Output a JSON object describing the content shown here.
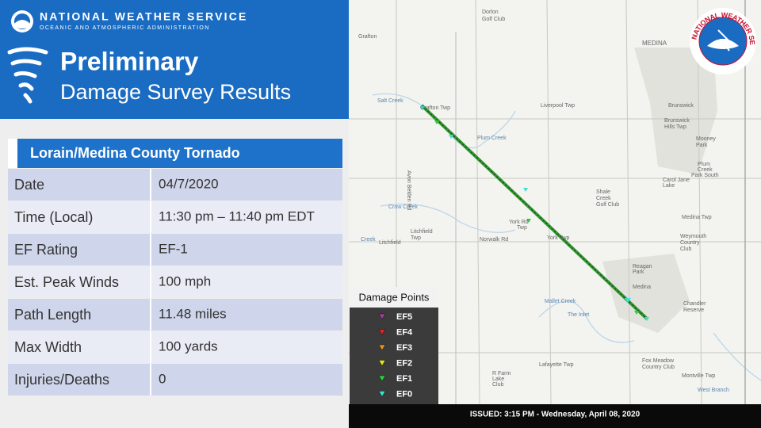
{
  "header": {
    "agency": "NATIONAL WEATHER SERVICE",
    "subagency": "OCEANIC AND ATMOSPHERIC ADMINISTRATION",
    "title": "Preliminary",
    "subtitle": "Damage Survey Results"
  },
  "table": {
    "title": "Lorain/Medina  County Tornado",
    "rows": [
      [
        "Date",
        "04/7/2020"
      ],
      [
        "Time (Local)",
        "11:30 pm – 11:40 pm EDT"
      ],
      [
        "EF Rating",
        "EF-1"
      ],
      [
        "Est. Peak Winds",
        "100 mph"
      ],
      [
        "Path Length",
        "11.48 miles"
      ],
      [
        "Max Width",
        "100 yards"
      ],
      [
        "Injuries/Deaths",
        "0"
      ]
    ]
  },
  "map": {
    "labels": [
      "Grafton",
      "Dorlon",
      "Golf Club",
      "MEDINA",
      "Brunswick",
      "Brunswick",
      "Hills Twp",
      "Grafton Twp",
      "Salt Creek",
      "Liverpool Twp",
      "Plum Creek",
      "Mooney",
      "Park",
      "Plum",
      "Creek",
      "Park South",
      "Carol Jane",
      "Lake",
      "Shale",
      "Creek",
      "Golf Club",
      "Crow Creek",
      "York Rd",
      "Twp",
      "Norwalk Rd",
      "York Twp",
      "Litchfield",
      "Twp",
      "Litchfield",
      "Medina Twp",
      "Weymouth",
      "Country",
      "Club",
      "Reagan",
      "Park",
      "Medina",
      "Chandler",
      "Reserve",
      "Mallet Creek",
      "The Inlet",
      "Lafayette Twp",
      "R Farm",
      "Lake",
      "Club",
      "Fox Meadow",
      "Country Club",
      "Montville Twp",
      "West Branch",
      "Avon Belden Rd",
      "Creek"
    ],
    "legend": {
      "title": "Damage Points",
      "items": [
        {
          "label": "EF5",
          "color": "#9b3f9b"
        },
        {
          "label": "EF4",
          "color": "#e02424"
        },
        {
          "label": "EF3",
          "color": "#e8901e"
        },
        {
          "label": "EF2",
          "color": "#e6e61e"
        },
        {
          "label": "EF1",
          "color": "#2fcf3f"
        },
        {
          "label": "EF0",
          "color": "#3ee0d4"
        }
      ]
    }
  },
  "logo": {
    "ring": "NATIONAL WEATHER SERVICE"
  },
  "footer": "ISSUED: 3:15 PM - Wednesday, April 08, 2020"
}
